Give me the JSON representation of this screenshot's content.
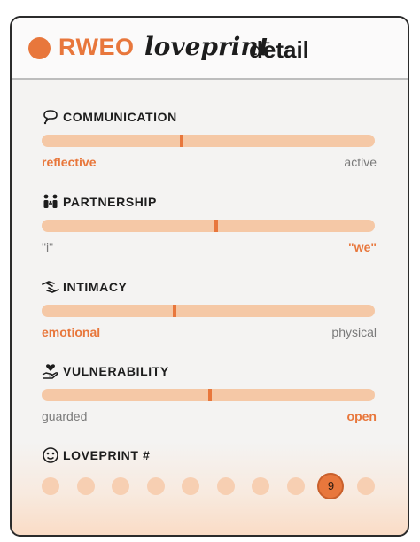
{
  "header": {
    "brand": "RWEO",
    "title_script": "loveprint",
    "title_tail": "detail"
  },
  "sections": [
    {
      "icon": "speech-bubble-icon",
      "label": "COMMUNICATION",
      "left": "reflective",
      "right": "active",
      "active_side": "left",
      "value": 0.42
    },
    {
      "icon": "people-icon",
      "label": "PARTNERSHIP",
      "left": "\"i\"",
      "right": "\"we\"",
      "active_side": "right",
      "value": 0.525
    },
    {
      "icon": "hands-icon",
      "label": "INTIMACY",
      "left": "emotional",
      "right": "physical",
      "active_side": "left",
      "value": 0.4
    },
    {
      "icon": "heart-hand-icon",
      "label": "VULNERABILITY",
      "left": "guarded",
      "right": "open",
      "active_side": "right",
      "value": 0.505
    }
  ],
  "loveprint": {
    "icon": "badge-icon",
    "label": "LOVEPRINT #",
    "count": 10,
    "selected_index": 8,
    "selected_label": "9"
  },
  "colors": {
    "accent": "#e8773c",
    "track": "#f5c8a6",
    "dot": "#f7cfb2"
  }
}
